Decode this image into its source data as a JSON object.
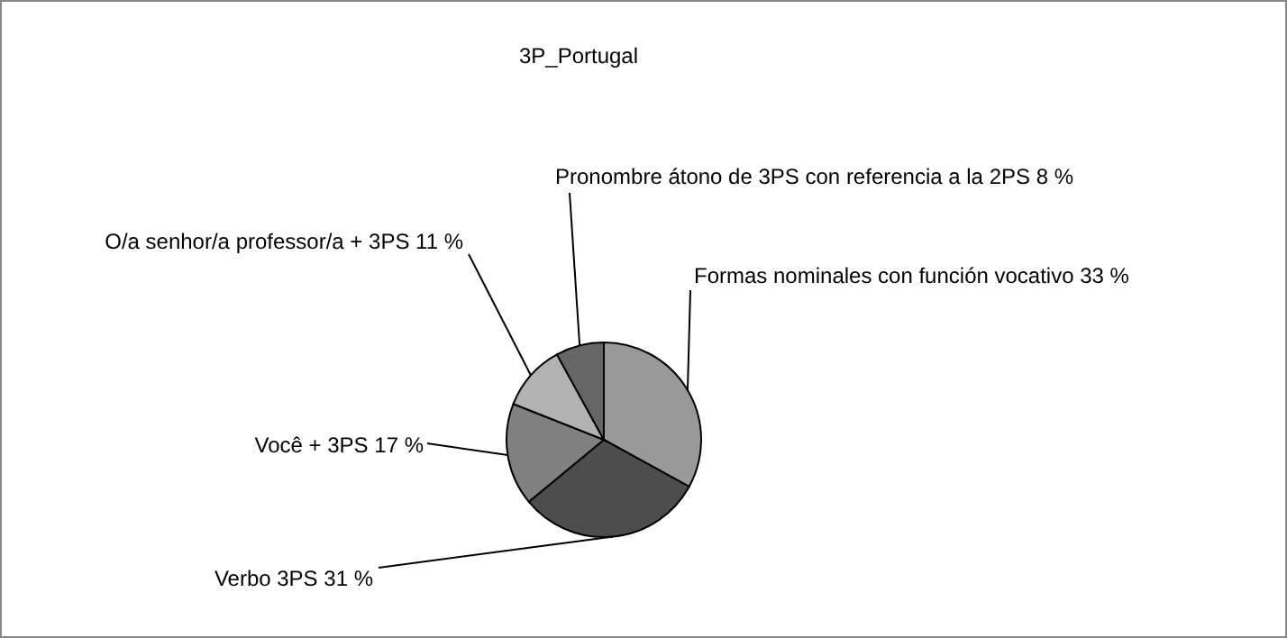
{
  "chart_data": {
    "type": "pie",
    "title": "3P_Portugal",
    "categories": [
      "Formas nominales con función vocativo",
      "Verbo 3PS",
      "Você + 3PS",
      "O/a senhor/a professor/a + 3PS",
      "Pronombre átono de 3PS con referencia a la 2PS"
    ],
    "values": [
      33,
      31,
      17,
      11,
      8
    ],
    "value_labels": [
      "33 %",
      "31 %",
      "17 %",
      "11 %",
      "8 %"
    ],
    "colors": [
      "#999999",
      "#4d4d4d",
      "#808080",
      "#b2b2b2",
      "#666666"
    ],
    "legend": false
  }
}
